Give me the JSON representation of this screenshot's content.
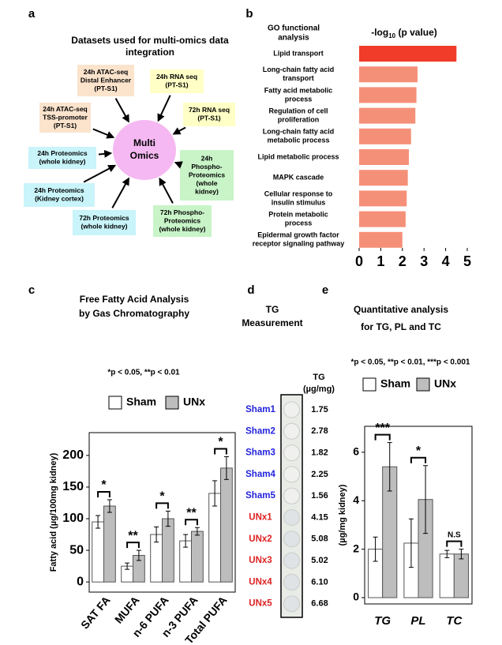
{
  "panel_a": {
    "letter": "a",
    "title_lines": [
      "Datasets used for multi-omics data",
      "integration"
    ],
    "center_lines": [
      "Multi",
      "Omics"
    ],
    "center_color": "#f5b8f2",
    "nodes": [
      {
        "lines": [
          "24h ATAC-seq",
          "Distal Enhancer",
          "(PT-S1)"
        ],
        "fill": "#fbe3cc"
      },
      {
        "lines": [
          "24h RNA seq",
          "(PT-S1)"
        ],
        "fill": "#ffffc6"
      },
      {
        "lines": [
          "72h RNA seq",
          "(PT-S1)"
        ],
        "fill": "#ffffc6"
      },
      {
        "lines": [
          "24h ATAC-seq",
          "TSS-promoter",
          "(PT-S1)"
        ],
        "fill": "#fbe3cc"
      },
      {
        "lines": [
          "24h Proteomics",
          "(whole kidney)"
        ],
        "fill": "#c8f4fa"
      },
      {
        "lines": [
          "24h",
          "Phospho-",
          "Proteomics",
          "(whole",
          "kidney)"
        ],
        "fill": "#c8f4c8"
      },
      {
        "lines": [
          "24h Proteomics",
          "(Kidney cortex)"
        ],
        "fill": "#c8f4fa"
      },
      {
        "lines": [
          "72h Proteomics",
          "(whole kidney)"
        ],
        "fill": "#c8f4fa"
      },
      {
        "lines": [
          "72h Phospho-",
          "Proteomics",
          "(whole kidney)"
        ],
        "fill": "#c8f4c8"
      }
    ]
  },
  "panel_d": {
    "letter": "d",
    "title_lines": [
      "TG",
      "Measurement"
    ],
    "header_lines": [
      "TG",
      "(µg/mg)"
    ],
    "rows": [
      {
        "label": "Sham1",
        "value": "1.75",
        "color": "#2222dd"
      },
      {
        "label": "Sham2",
        "value": "2.78",
        "color": "#2222dd"
      },
      {
        "label": "Sham3",
        "value": "1.82",
        "color": "#2222dd"
      },
      {
        "label": "Sham4",
        "value": "2.25",
        "color": "#2222dd"
      },
      {
        "label": "Sham5",
        "value": "1.56",
        "color": "#2222dd"
      },
      {
        "label": "UNx1",
        "value": "4.15",
        "color": "#dd2222"
      },
      {
        "label": "UNx2",
        "value": "5.08",
        "color": "#dd2222"
      },
      {
        "label": "UNx3",
        "value": "5.02",
        "color": "#dd2222"
      },
      {
        "label": "UNx4",
        "value": "6.10",
        "color": "#dd2222"
      },
      {
        "label": "UNx5",
        "value": "6.68",
        "color": "#dd2222"
      }
    ]
  },
  "chart_data": [
    {
      "type": "barh",
      "letter": "b",
      "title_lines": [
        "GO functional",
        "analysis"
      ],
      "xlabel_parts": [
        "-log",
        "10",
        " (p value)"
      ],
      "categories": [
        [
          "Lipid transport"
        ],
        [
          "Long-chain fatty acid",
          "transport"
        ],
        [
          "Fatty acid metabolic",
          "process"
        ],
        [
          "Regulation of cell",
          "proliferation"
        ],
        [
          "Long-chain fatty acid",
          "metabolic process"
        ],
        [
          "Lipid metabolic process"
        ],
        [
          "MAPK cascade"
        ],
        [
          "Cellular response to",
          "insulin stimulus"
        ],
        [
          "Protein metabolic",
          "process"
        ],
        [
          "Epidermal growth factor",
          "receptor signaling pathway"
        ]
      ],
      "values": [
        4.5,
        2.7,
        2.65,
        2.6,
        2.4,
        2.3,
        2.25,
        2.2,
        2.15,
        2.0
      ],
      "colors": [
        "#f03c28",
        "#f59078",
        "#f59078",
        "#f59078",
        "#f59078",
        "#f59078",
        "#f59078",
        "#f59078",
        "#f59078",
        "#f59078"
      ],
      "xlim": [
        0,
        5
      ],
      "xticks": [
        0,
        1,
        2,
        3,
        4,
        5
      ]
    },
    {
      "type": "grouped_bar",
      "letter": "c",
      "title_lines": [
        "Free Fatty Acid Analysis",
        "by Gas Chromatography"
      ],
      "note": "*p < 0.05, **p < 0.01",
      "ylabel": "Fatty acid (µg/100mg kidney)",
      "categories": [
        "SAT FA",
        "MUFA",
        "n-6 PUFA",
        "n-3 PUFA",
        "Total PUFA"
      ],
      "series": [
        {
          "name": "Sham",
          "color": "#ffffff",
          "values": [
            95,
            25,
            75,
            65,
            140
          ],
          "errors": [
            10,
            5,
            12,
            10,
            20
          ]
        },
        {
          "name": "UNx",
          "color": "#bdbdbd",
          "values": [
            120,
            42,
            100,
            80,
            180
          ],
          "errors": [
            10,
            8,
            12,
            6,
            18
          ]
        }
      ],
      "significance": [
        "*",
        "**",
        "*",
        "**",
        "*"
      ],
      "ylim": [
        -16,
        236
      ],
      "yticks": [
        0,
        50,
        100,
        150,
        200
      ]
    },
    {
      "type": "grouped_bar",
      "letter": "e",
      "title_lines": [
        "Quantitative analysis",
        "for TG, PL and TC"
      ],
      "note": "*p < 0.05, **p < 0.01, ***p < 0.001",
      "ylabel": "(µg/mg kidney)",
      "categories": [
        "TG",
        "PL",
        "TC"
      ],
      "series": [
        {
          "name": "Sham",
          "color": "#ffffff",
          "values": [
            2.0,
            2.25,
            1.8
          ],
          "errors": [
            0.5,
            1.0,
            0.15
          ]
        },
        {
          "name": "UNx",
          "color": "#bdbdbd",
          "values": [
            5.4,
            4.05,
            1.8
          ],
          "errors": [
            1.0,
            1.4,
            0.2
          ]
        }
      ],
      "significance": [
        "***",
        "*",
        "N.S"
      ],
      "ylim": [
        -0.26,
        7.07
      ],
      "yticks": [
        0,
        2,
        4,
        6
      ]
    }
  ]
}
